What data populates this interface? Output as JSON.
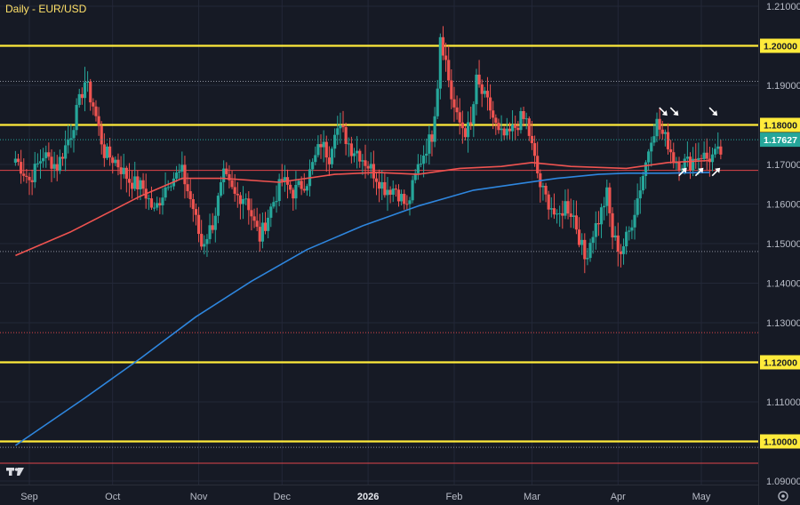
{
  "chart_data": {
    "type": "candlestick",
    "title": "Daily - EUR/USD",
    "colors": {
      "background": "#161a25",
      "up": "#26a69a",
      "down": "#ef5350",
      "ma_short": "#ef5350",
      "ma_long": "#2e86de",
      "level_line": "#ffeb3b",
      "last_price_tag": "#26a69a",
      "axis_text": "#b8bcc7"
    },
    "y_axis": {
      "min": 1.085,
      "max": 1.21,
      "ticks": [
        "1.21000",
        "1.20000",
        "1.19000",
        "1.18000",
        "1.17000",
        "1.16000",
        "1.15000",
        "1.14000",
        "1.13000",
        "1.12000",
        "1.11000",
        "1.10000",
        "1.09000"
      ]
    },
    "x_axis": {
      "ticks": [
        {
          "label": "Sep",
          "day": 0
        },
        {
          "label": "Oct",
          "day": 30
        },
        {
          "label": "Nov",
          "day": 61
        },
        {
          "label": "Dec",
          "day": 91
        },
        {
          "label": "2026",
          "day": 122,
          "bold": true
        },
        {
          "label": "Feb",
          "day": 153
        },
        {
          "label": "Mar",
          "day": 181
        },
        {
          "label": "Apr",
          "day": 212
        },
        {
          "label": "May",
          "day": 242
        }
      ]
    },
    "horizontal_levels": [
      {
        "value": 1.2,
        "style": "solid",
        "color": "yellow",
        "label": "1.20000"
      },
      {
        "value": 1.18,
        "style": "solid",
        "color": "yellow",
        "label": "1.18000"
      },
      {
        "value": 1.12,
        "style": "solid",
        "color": "yellow",
        "label": "1.12000"
      },
      {
        "value": 1.1,
        "style": "solid",
        "color": "yellow",
        "label": "1.10000"
      },
      {
        "value": 1.191,
        "style": "dotted",
        "color": "gray"
      },
      {
        "value": 1.1685,
        "style": "solid-thin",
        "color": "red"
      },
      {
        "value": 1.148,
        "style": "dotted",
        "color": "gray"
      },
      {
        "value": 1.1275,
        "style": "dotted",
        "color": "red"
      },
      {
        "value": 1.0985,
        "style": "dotted",
        "color": "gray"
      },
      {
        "value": 1.0945,
        "style": "solid-thin",
        "color": "red"
      }
    ],
    "last_price": "1.17627",
    "ma_short": [
      [
        -5,
        1.147
      ],
      [
        15,
        1.153
      ],
      [
        40,
        1.162
      ],
      [
        55,
        1.1665
      ],
      [
        70,
        1.1665
      ],
      [
        90,
        1.1655
      ],
      [
        110,
        1.1675
      ],
      [
        125,
        1.168
      ],
      [
        140,
        1.1675
      ],
      [
        155,
        1.169
      ],
      [
        170,
        1.1695
      ],
      [
        181,
        1.1705
      ],
      [
        195,
        1.1695
      ],
      [
        215,
        1.169
      ],
      [
        230,
        1.1705
      ],
      [
        245,
        1.171
      ]
    ],
    "ma_long": [
      [
        -5,
        1.099
      ],
      [
        20,
        1.111
      ],
      [
        40,
        1.121
      ],
      [
        60,
        1.1315
      ],
      [
        80,
        1.1405
      ],
      [
        100,
        1.1485
      ],
      [
        120,
        1.1545
      ],
      [
        140,
        1.1595
      ],
      [
        160,
        1.1635
      ],
      [
        175,
        1.165
      ],
      [
        190,
        1.1665
      ],
      [
        205,
        1.1675
      ],
      [
        215,
        1.1678
      ],
      [
        230,
        1.1678
      ],
      [
        245,
        1.168
      ]
    ],
    "anchors": [
      [
        -5,
        1.1715
      ],
      [
        0,
        1.166
      ],
      [
        5,
        1.1725
      ],
      [
        10,
        1.1695
      ],
      [
        15,
        1.178
      ],
      [
        20,
        1.191
      ],
      [
        23,
        1.185
      ],
      [
        27,
        1.173
      ],
      [
        31,
        1.171
      ],
      [
        36,
        1.166
      ],
      [
        41,
        1.164
      ],
      [
        45,
        1.158
      ],
      [
        50,
        1.166
      ],
      [
        55,
        1.168
      ],
      [
        59,
        1.159
      ],
      [
        62,
        1.1495
      ],
      [
        66,
        1.155
      ],
      [
        70,
        1.167
      ],
      [
        74,
        1.162
      ],
      [
        78,
        1.162
      ],
      [
        81,
        1.155
      ],
      [
        83,
        1.1515
      ],
      [
        87,
        1.159
      ],
      [
        91,
        1.166
      ],
      [
        95,
        1.163
      ],
      [
        100,
        1.166
      ],
      [
        105,
        1.1755
      ],
      [
        108,
        1.172
      ],
      [
        110,
        1.1795
      ],
      [
        113,
        1.178
      ],
      [
        116,
        1.174
      ],
      [
        118,
        1.1735
      ],
      [
        124,
        1.168
      ],
      [
        128,
        1.164
      ],
      [
        132,
        1.164
      ],
      [
        136,
        1.159
      ],
      [
        140,
        1.1695
      ],
      [
        143,
        1.1745
      ],
      [
        145,
        1.1775
      ],
      [
        147,
        1.1905
      ],
      [
        148,
        1.203
      ],
      [
        150,
        1.196
      ],
      [
        152,
        1.187
      ],
      [
        154,
        1.1815
      ],
      [
        157,
        1.1785
      ],
      [
        159,
        1.1795
      ],
      [
        161,
        1.191
      ],
      [
        163,
        1.188
      ],
      [
        166,
        1.184
      ],
      [
        169,
        1.1775
      ],
      [
        172,
        1.177
      ],
      [
        175,
        1.1795
      ],
      [
        177,
        1.1815
      ],
      [
        179,
        1.181
      ],
      [
        182,
        1.171
      ],
      [
        184,
        1.1645
      ],
      [
        186,
        1.1615
      ],
      [
        188,
        1.1595
      ],
      [
        190,
        1.1555
      ],
      [
        193,
        1.16
      ],
      [
        196,
        1.157
      ],
      [
        199,
        1.149
      ],
      [
        200,
        1.146
      ],
      [
        203,
        1.153
      ],
      [
        205,
        1.156
      ],
      [
        208,
        1.1625
      ],
      [
        210,
        1.152
      ],
      [
        213,
        1.148
      ],
      [
        216,
        1.153
      ],
      [
        219,
        1.1615
      ],
      [
        222,
        1.1705
      ],
      [
        224,
        1.1775
      ],
      [
        226,
        1.1805
      ],
      [
        228,
        1.1775
      ],
      [
        230,
        1.1755
      ],
      [
        232,
        1.1715
      ],
      [
        234,
        1.1705
      ],
      [
        236,
        1.1705
      ],
      [
        238,
        1.1705
      ],
      [
        240,
        1.172
      ],
      [
        242,
        1.1725
      ],
      [
        244,
        1.1715
      ],
      [
        246,
        1.172
      ],
      [
        249,
        1.173
      ],
      [
        252,
        1.1765
      ]
    ],
    "annotations": [
      {
        "type": "arrow",
        "direction": "down-right",
        "day": 228.5,
        "price": 1.183
      },
      {
        "type": "arrow",
        "direction": "down-right",
        "day": 232.5,
        "price": 1.183
      },
      {
        "type": "arrow",
        "direction": "down-right",
        "day": 246.5,
        "price": 1.183
      },
      {
        "type": "arrow",
        "direction": "up-right",
        "day": 235.5,
        "price": 1.1685
      },
      {
        "type": "arrow",
        "direction": "up-right",
        "day": 241.5,
        "price": 1.1685
      },
      {
        "type": "arrow",
        "direction": "up-right",
        "day": 247.5,
        "price": 1.1685
      }
    ],
    "watermark_icon": "tradingview-logo-icon",
    "settings_icon": "settings-circle-icon"
  }
}
